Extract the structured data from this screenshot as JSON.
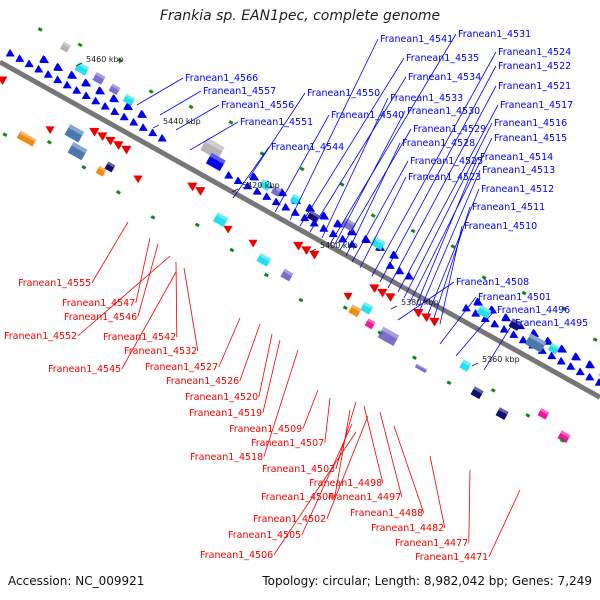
{
  "title": "Frankia sp. EAN1pec, complete genome",
  "footer": {
    "accession": "Accession: NC_009921",
    "stats": "Topology: circular; Length: 8,982,042 bp; Genes: 7,249"
  },
  "colors": {
    "forward": "#0000ee",
    "reverse": "#ee0000",
    "axis": "#777777",
    "kbp_tick": "#118811",
    "cyan": "#22e0ee",
    "purple": "#7b6fc8",
    "navy": "#101070",
    "steel": "#4a78b0",
    "grey": "#b4b4b4",
    "orange": "#f08a10",
    "magenta": "#ee1898"
  },
  "kbp_marks": [
    "5460 kbp",
    "5440 kbp",
    "5420 kbp",
    "5400 kbp",
    "5380 kbp",
    "5360 kbp"
  ],
  "top_labels": [
    "Franean1_4566",
    "Franean1_4557",
    "Franean1_4556",
    "Franean1_4551",
    "Franean1_4550",
    "Franean1_4541",
    "Franean1_4535",
    "Franean1_4534",
    "Franean1_4533",
    "Franean1_4540",
    "Franean1_4530",
    "Franean1_4529",
    "Franean1_4528",
    "Franean1_4544",
    "Franean1_4525",
    "Franean1_4523",
    "Franean1_4531",
    "Franean1_4524",
    "Franean1_4522",
    "Franean1_4521",
    "Franean1_4517",
    "Franean1_4516",
    "Franean1_4515",
    "Franean1_4514",
    "Franean1_4513",
    "Franean1_4512",
    "Franean1_4511",
    "Franean1_4510",
    "Franean1_4508",
    "Franean1_4501",
    "Franean1_4496",
    "Franean1_4495"
  ],
  "bottom_labels": [
    "Franean1_4555",
    "Franean1_4547",
    "Franean1_4546",
    "Franean1_4552",
    "Franean1_4542",
    "Franean1_4532",
    "Franean1_4545",
    "Franean1_4527",
    "Franean1_4526",
    "Franean1_4520",
    "Franean1_4519",
    "Franean1_4509",
    "Franean1_4507",
    "Franean1_4518",
    "Franean1_4503",
    "Franean1_4498",
    "Franean1_4504",
    "Franean1_4497",
    "Franean1_4502",
    "Franean1_4488",
    "Franean1_4505",
    "Franean1_4482",
    "Franean1_4506",
    "Franean1_4477",
    "Franean1_4471"
  ]
}
